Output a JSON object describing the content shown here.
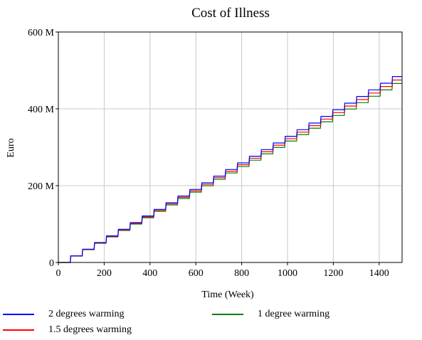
{
  "chart_data": {
    "type": "line",
    "title": "Cost of Illness",
    "xlabel": "Time (Week)",
    "ylabel": "Euro",
    "xlim": [
      0,
      1500
    ],
    "ylim": [
      0,
      600
    ],
    "xticks": [
      0,
      200,
      400,
      600,
      800,
      1000,
      1200,
      1400
    ],
    "yticks": [
      0,
      200,
      400,
      600
    ],
    "ytick_labels": [
      "0",
      "200 M",
      "400 M",
      "600 M"
    ],
    "grid": true,
    "step_width_weeks": 52,
    "step_start_week": 52,
    "x_end": 1500,
    "series": [
      {
        "name": "2 degrees warming",
        "color": "#0000ff",
        "final_value": 484,
        "steps": 28
      },
      {
        "name": "1.5 degrees warming",
        "color": "#ff0000",
        "final_value": 475,
        "steps": 28
      },
      {
        "name": "1 degree warming",
        "color": "#008000",
        "final_value": 466,
        "steps": 28
      }
    ]
  },
  "legend": [
    {
      "label": "2 degrees warming",
      "color": "#0000ff"
    },
    {
      "label": "1.5 degrees warming",
      "color": "#ff0000"
    },
    {
      "label": "1 degree warming",
      "color": "#008000"
    }
  ]
}
